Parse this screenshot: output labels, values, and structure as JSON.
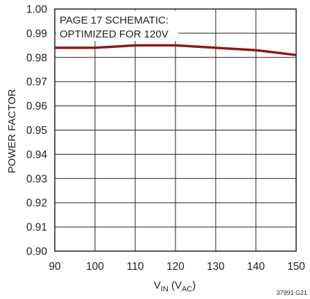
{
  "chart_data": {
    "type": "line",
    "xlabel": {
      "main": "V",
      "sub": "IN",
      "paren_open": " (V",
      "paren_sub": "AC",
      "paren_close": ")"
    },
    "ylabel": "POWER FACTOR",
    "xlim": [
      90,
      150
    ],
    "ylim": [
      0.9,
      1.0
    ],
    "x_ticks": [
      90,
      100,
      110,
      120,
      130,
      140,
      150
    ],
    "x_tick_labels": [
      "90",
      "100",
      "110",
      "120",
      "130",
      "140",
      "150"
    ],
    "y_ticks": [
      0.9,
      0.91,
      0.92,
      0.93,
      0.94,
      0.95,
      0.96,
      0.97,
      0.98,
      0.99,
      1.0
    ],
    "y_tick_labels": [
      "0.90",
      "0.91",
      "0.92",
      "0.93",
      "0.94",
      "0.95",
      "0.96",
      "0.97",
      "0.98",
      "0.99",
      "1.00"
    ],
    "grid": true,
    "annotation": [
      "PAGE 17 SCHEMATIC:",
      "OPTIMIZED FOR 120V"
    ],
    "figure_id": "37991 G21",
    "series": [
      {
        "color": "#8b1a1a",
        "x": [
          90,
          100,
          110,
          120,
          130,
          140,
          150
        ],
        "y": [
          0.984,
          0.984,
          0.985,
          0.985,
          0.984,
          0.983,
          0.981
        ]
      }
    ]
  }
}
